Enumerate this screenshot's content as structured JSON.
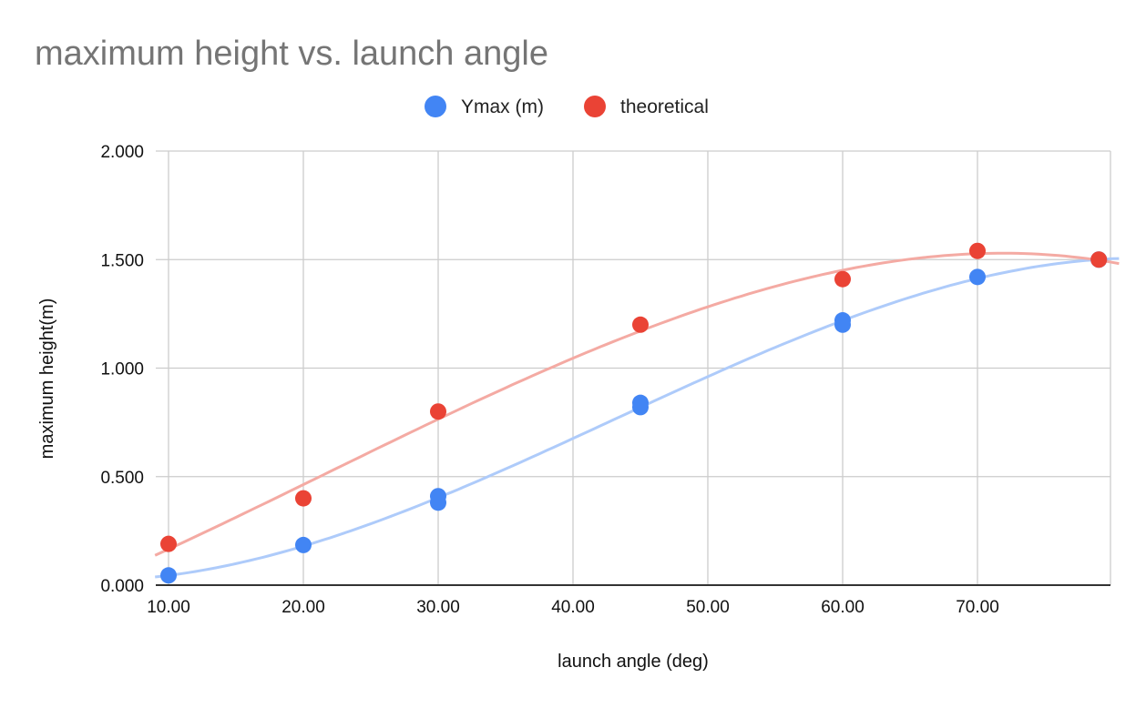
{
  "chart_data": {
    "type": "scatter",
    "title": "maximum height vs. launch angle",
    "xlabel": "launch angle (deg)",
    "ylabel": "maximum height(m)",
    "xlim": [
      10,
      80
    ],
    "ylim": [
      0,
      2
    ],
    "x_ticks": [
      10,
      20,
      30,
      40,
      50,
      60,
      70
    ],
    "x_tick_labels": [
      "10.00",
      "20.00",
      "30.00",
      "40.00",
      "50.00",
      "60.00",
      "70.00"
    ],
    "y_ticks": [
      0,
      0.5,
      1,
      1.5,
      2
    ],
    "y_tick_labels": [
      "0.000",
      "0.500",
      "1.000",
      "1.500",
      "2.000"
    ],
    "grid": true,
    "legend_position": "top",
    "trendlines": true,
    "series": [
      {
        "name": "Ymax (m)",
        "color": "#4285f4",
        "trend_color": "#aecbfa",
        "points": [
          [
            10,
            0.045
          ],
          [
            20,
            0.185
          ],
          [
            30,
            0.41
          ],
          [
            30,
            0.38
          ],
          [
            45,
            0.84
          ],
          [
            45,
            0.82
          ],
          [
            60,
            1.22
          ],
          [
            60,
            1.2
          ],
          [
            70,
            1.42
          ],
          [
            79,
            1.5
          ]
        ]
      },
      {
        "name": "theoretical",
        "color": "#ea4335",
        "trend_color": "#f4aaa3",
        "points": [
          [
            10,
            0.19
          ],
          [
            20,
            0.4
          ],
          [
            30,
            0.8
          ],
          [
            45,
            1.2
          ],
          [
            60,
            1.41
          ],
          [
            70,
            1.54
          ],
          [
            79,
            1.5
          ]
        ]
      }
    ]
  }
}
